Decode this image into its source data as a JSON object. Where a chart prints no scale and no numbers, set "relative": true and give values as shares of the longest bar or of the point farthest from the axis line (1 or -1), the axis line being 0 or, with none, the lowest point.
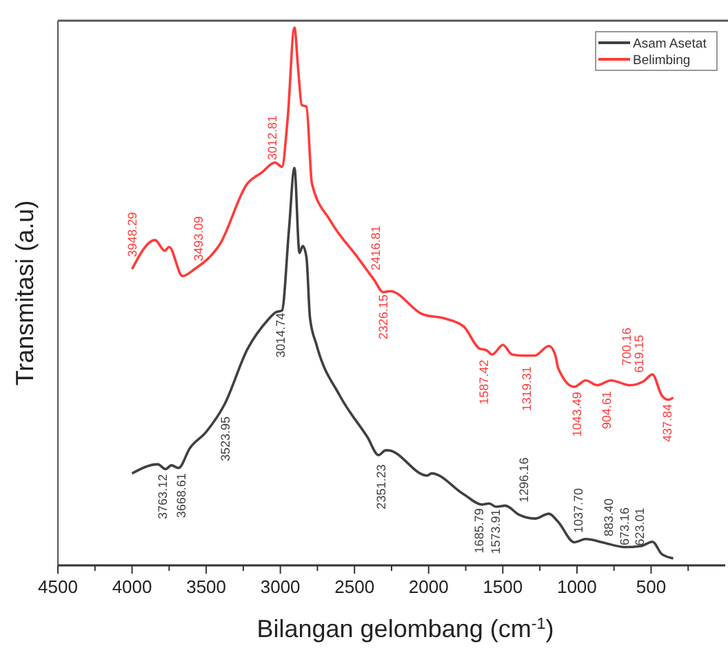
{
  "chart_data": {
    "type": "line",
    "relative": true,
    "xlabel": "Bilangan gelombang (cm$^{-1}$)",
    "ylabel": "Transmitasi (a.u)",
    "xlim": [
      4500,
      0
    ],
    "xticks": [
      4500,
      {
        "value": 4250,
        "label": null
      },
      4000,
      {
        "value": 3750,
        "label": null
      },
      3500,
      {
        "value": 3250,
        "label": null
      },
      3000,
      {
        "value": 2750,
        "label": null
      },
      2500,
      {
        "value": 2250,
        "label": null
      },
      2000,
      {
        "value": 1750,
        "label": null
      },
      1500,
      {
        "value": 1250,
        "label": null
      },
      1000,
      {
        "value": 750,
        "label": null
      },
      500,
      {
        "value": 250,
        "label": null
      }
    ],
    "legend": "top right",
    "line_style": "solid",
    "marker": "none",
    "series": [
      {
        "name": "Asam Asetat",
        "color": "#404040",
        "x": [
          4000,
          3827,
          3774,
          3734,
          3687,
          3610,
          3501,
          3377,
          3222,
          3082,
          3035,
          2989,
          2942,
          2905,
          2871,
          2849,
          2824,
          2800,
          2756,
          2600,
          2414,
          2337,
          2290,
          2275,
          2011,
          1980,
          1763,
          1639,
          1592,
          1546,
          1483,
          1390,
          1282,
          1189,
          1127,
          1018,
          940,
          831,
          677,
          568,
          491,
          428,
          351
        ],
        "values": [
          0.171,
          0.188,
          0.179,
          0.186,
          0.181,
          0.218,
          0.248,
          0.299,
          0.402,
          0.457,
          0.47,
          0.474,
          0.624,
          0.739,
          0.581,
          0.594,
          0.573,
          0.46,
          0.41,
          0.316,
          0.239,
          0.205,
          0.214,
          0.214,
          0.167,
          0.171,
          0.132,
          0.113,
          0.115,
          0.109,
          0.111,
          0.094,
          0.087,
          0.096,
          0.081,
          0.043,
          0.049,
          0.043,
          0.034,
          0.036,
          0.044,
          0.021,
          0.013
        ]
      },
      {
        "name": "Belimbing",
        "color": "#ff3b3b",
        "x": [
          4000,
          3845,
          3780,
          3750,
          3660,
          3578,
          3408,
          3222,
          3128,
          3035,
          2989,
          2951,
          2905,
          2880,
          2856,
          2824,
          2787,
          2663,
          2477,
          2368,
          2306,
          2260,
          2042,
          1890,
          1763,
          1657,
          1610,
          1572,
          1499,
          1437,
          1359,
          1285,
          1189,
          1145,
          1127,
          1018,
          940,
          863,
          770,
          645,
          552,
          491,
          428,
          382,
          351
        ],
        "values": [
          0.551,
          0.605,
          0.585,
          0.592,
          0.538,
          0.551,
          0.597,
          0.71,
          0.73,
          0.749,
          0.741,
          0.83,
          1,
          0.923,
          0.856,
          0.853,
          0.71,
          0.641,
          0.572,
          0.531,
          0.508,
          0.51,
          0.467,
          0.459,
          0.444,
          0.403,
          0.4,
          0.392,
          0.41,
          0.392,
          0.39,
          0.39,
          0.408,
          0.39,
          0.367,
          0.332,
          0.344,
          0.335,
          0.344,
          0.335,
          0.342,
          0.355,
          0.316,
          0.308,
          0.312
        ]
      }
    ],
    "annotations": [
      {
        "text": "3948.29",
        "x": 4000,
        "y": 0.551
      },
      {
        "text": "3493.09",
        "x": 3578,
        "y": 0.551
      },
      {
        "text": "3012.81",
        "x": 3035,
        "y": 0.749
      },
      {
        "text": "2416.81",
        "x": 2368,
        "y": 0.531
      },
      {
        "text": "2326.15",
        "x": 2306,
        "y": 0.508
      },
      {
        "text": "1587.42",
        "x": 1572,
        "y": 0.392
      },
      {
        "text": "1319.31",
        "x": 1359,
        "y": 0.39
      },
      {
        "text": "1043.49",
        "x": 1018,
        "y": 0.332
      },
      {
        "text": "904.61",
        "x": 863,
        "y": 0.335
      },
      {
        "text": "700.16",
        "x": 645,
        "y": 0.335
      },
      {
        "text": "619.15",
        "x": 552,
        "y": 0.342
      },
      {
        "text": "437.84",
        "x": 428,
        "y": 0.316
      },
      {
        "text": "3763.12",
        "x": 3774,
        "y": 0.179
      },
      {
        "text": "3668.61",
        "x": 3687,
        "y": 0.181
      },
      {
        "text": "3523.95",
        "x": 3501,
        "y": 0.248
      },
      {
        "text": "3014.74",
        "x": 2989,
        "y": 0.474
      },
      {
        "text": "2351.23",
        "x": 2337,
        "y": 0.205
      },
      {
        "text": "1685.79",
        "x": 1639,
        "y": 0.113
      },
      {
        "text": "1573.91",
        "x": 1546,
        "y": 0.109
      },
      {
        "text": "1296.16",
        "x": 1282,
        "y": 0.087
      },
      {
        "text": "1037.70",
        "x": 1018,
        "y": 0.043
      },
      {
        "text": "883.40",
        "x": 831,
        "y": 0.043
      },
      {
        "text": "673.16",
        "x": 677,
        "y": 0.034
      },
      {
        "text": "623.01",
        "x": 568,
        "y": 0.036
      }
    ]
  }
}
